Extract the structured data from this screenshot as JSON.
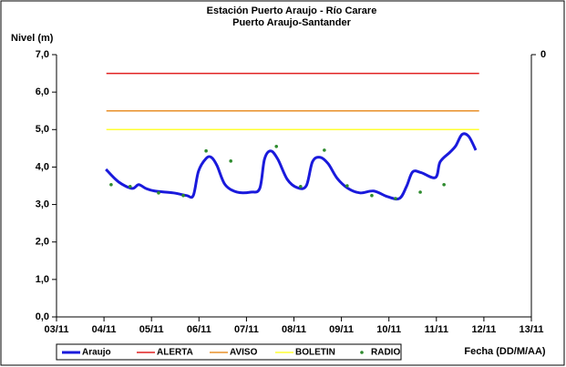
{
  "chart_data": {
    "type": "line",
    "title": [
      "Estación Puerto Araujo - Río Carare",
      "Puerto Araujo-Santander"
    ],
    "y_label": "Nivel (m)",
    "x_label": "Fecha (DD/M/AA)",
    "right_axis_tick": "0",
    "xlim": [
      0,
      10
    ],
    "xticks": [
      {
        "value": 0,
        "label": "03/11"
      },
      {
        "value": 1,
        "label": "04/11"
      },
      {
        "value": 2,
        "label": "05/11"
      },
      {
        "value": 3,
        "label": "06/11"
      },
      {
        "value": 4,
        "label": "07/11"
      },
      {
        "value": 5,
        "label": "08/11"
      },
      {
        "value": 6,
        "label": "09/11"
      },
      {
        "value": 7,
        "label": "10/11"
      },
      {
        "value": 8,
        "label": "11/11"
      },
      {
        "value": 9,
        "label": "12/11"
      },
      {
        "value": 10,
        "label": "13/11"
      }
    ],
    "ylim": [
      0,
      7
    ],
    "yticks": [
      {
        "value": 0,
        "label": "0,0"
      },
      {
        "value": 1,
        "label": "1,0"
      },
      {
        "value": 2,
        "label": "2,0"
      },
      {
        "value": 3,
        "label": "3,0"
      },
      {
        "value": 4,
        "label": "4,0"
      },
      {
        "value": 5,
        "label": "5,0"
      },
      {
        "value": 6,
        "label": "6,0"
      },
      {
        "value": 7,
        "label": "7,0"
      }
    ],
    "legend": "bottom",
    "series": [
      {
        "name": "Araujo",
        "color": "#1a1adc",
        "style": "line",
        "width": 3,
        "x": [
          1.04,
          1.31,
          1.59,
          1.73,
          1.88,
          2.07,
          2.46,
          2.74,
          2.88,
          2.99,
          3.15,
          3.26,
          3.38,
          3.55,
          3.8,
          4.09,
          4.28,
          4.38,
          4.51,
          4.66,
          4.86,
          5.07,
          5.26,
          5.39,
          5.55,
          5.72,
          5.91,
          6.14,
          6.39,
          6.68,
          6.97,
          7.22,
          7.37,
          7.5,
          7.68,
          7.98,
          8.08,
          8.29,
          8.41,
          8.54,
          8.68,
          8.83
        ],
        "values": [
          3.94,
          3.6,
          3.43,
          3.53,
          3.43,
          3.36,
          3.31,
          3.24,
          3.24,
          3.89,
          4.23,
          4.26,
          4.04,
          3.53,
          3.33,
          3.33,
          3.43,
          4.21,
          4.43,
          4.21,
          3.67,
          3.45,
          3.5,
          4.14,
          4.26,
          4.09,
          3.7,
          3.43,
          3.31,
          3.36,
          3.21,
          3.16,
          3.48,
          3.87,
          3.85,
          3.72,
          4.14,
          4.4,
          4.57,
          4.87,
          4.82,
          4.45
        ]
      },
      {
        "name": "ALERTA",
        "color": "#e02020",
        "style": "line",
        "width": 1.5,
        "x": [
          1.05,
          8.9
        ],
        "values": [
          6.5,
          6.5
        ]
      },
      {
        "name": "AVISO",
        "color": "#e8902a",
        "style": "line",
        "width": 1.5,
        "x": [
          1.05,
          8.9
        ],
        "values": [
          5.5,
          5.5
        ]
      },
      {
        "name": "BOLETIN",
        "color": "#ffff33",
        "style": "line",
        "width": 1.5,
        "x": [
          1.05,
          8.9
        ],
        "values": [
          5.0,
          5.0
        ]
      },
      {
        "name": "RADIO",
        "color": "#2e8b2e",
        "style": "markers",
        "x": [
          1.15,
          1.55,
          2.15,
          2.67,
          3.15,
          3.67,
          4.63,
          5.14,
          5.64,
          6.12,
          6.64,
          7.14,
          7.66,
          8.16
        ],
        "values": [
          3.53,
          3.48,
          3.31,
          3.24,
          4.43,
          4.16,
          4.55,
          3.48,
          4.45,
          3.5,
          3.24,
          3.16,
          3.33,
          3.53
        ]
      }
    ]
  }
}
